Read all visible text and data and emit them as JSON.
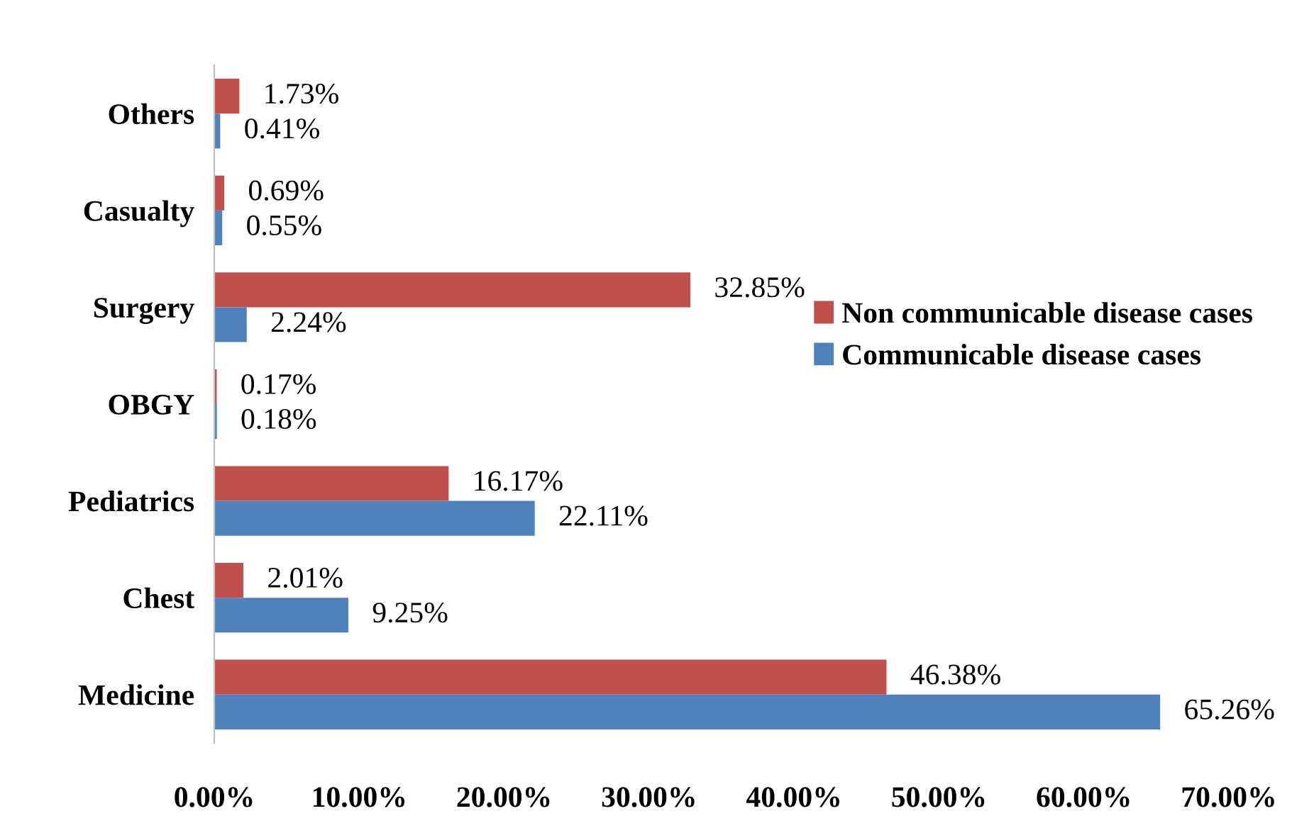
{
  "chart_data": {
    "type": "bar",
    "orientation": "horizontal",
    "categories": [
      "Others",
      "Casualty",
      "Surgery",
      "OBGY",
      "Pediatrics",
      "Chest",
      "Medicine"
    ],
    "series": [
      {
        "name": "Non communicable disease cases",
        "color": "#c0504d",
        "values": [
          1.73,
          0.69,
          32.85,
          0.17,
          16.17,
          2.01,
          46.38
        ],
        "value_labels": [
          "1.73%",
          "0.69%",
          "32.85%",
          "0.17%",
          "16.17%",
          "2.01%",
          "46.38%"
        ]
      },
      {
        "name": "Communicable disease cases",
        "color": "#4f81bd",
        "values": [
          0.41,
          0.55,
          2.24,
          0.18,
          22.11,
          9.25,
          65.26
        ],
        "value_labels": [
          "0.41%",
          "0.55%",
          "2.24%",
          "0.18%",
          "22.11%",
          "9.25%",
          "65.26%"
        ]
      }
    ],
    "xlim": [
      0,
      70
    ],
    "xticks": [
      {
        "value": 0,
        "label": "0.00%"
      },
      {
        "value": 10,
        "label": "10.00%"
      },
      {
        "value": 20,
        "label": "20.00%"
      },
      {
        "value": 30,
        "label": "30.00%"
      },
      {
        "value": 40,
        "label": "40.00%"
      },
      {
        "value": 50,
        "label": "50.00%"
      },
      {
        "value": 60,
        "label": "60.00%"
      },
      {
        "value": 70,
        "label": "70.00%"
      }
    ],
    "grid": false,
    "legend": "right"
  }
}
